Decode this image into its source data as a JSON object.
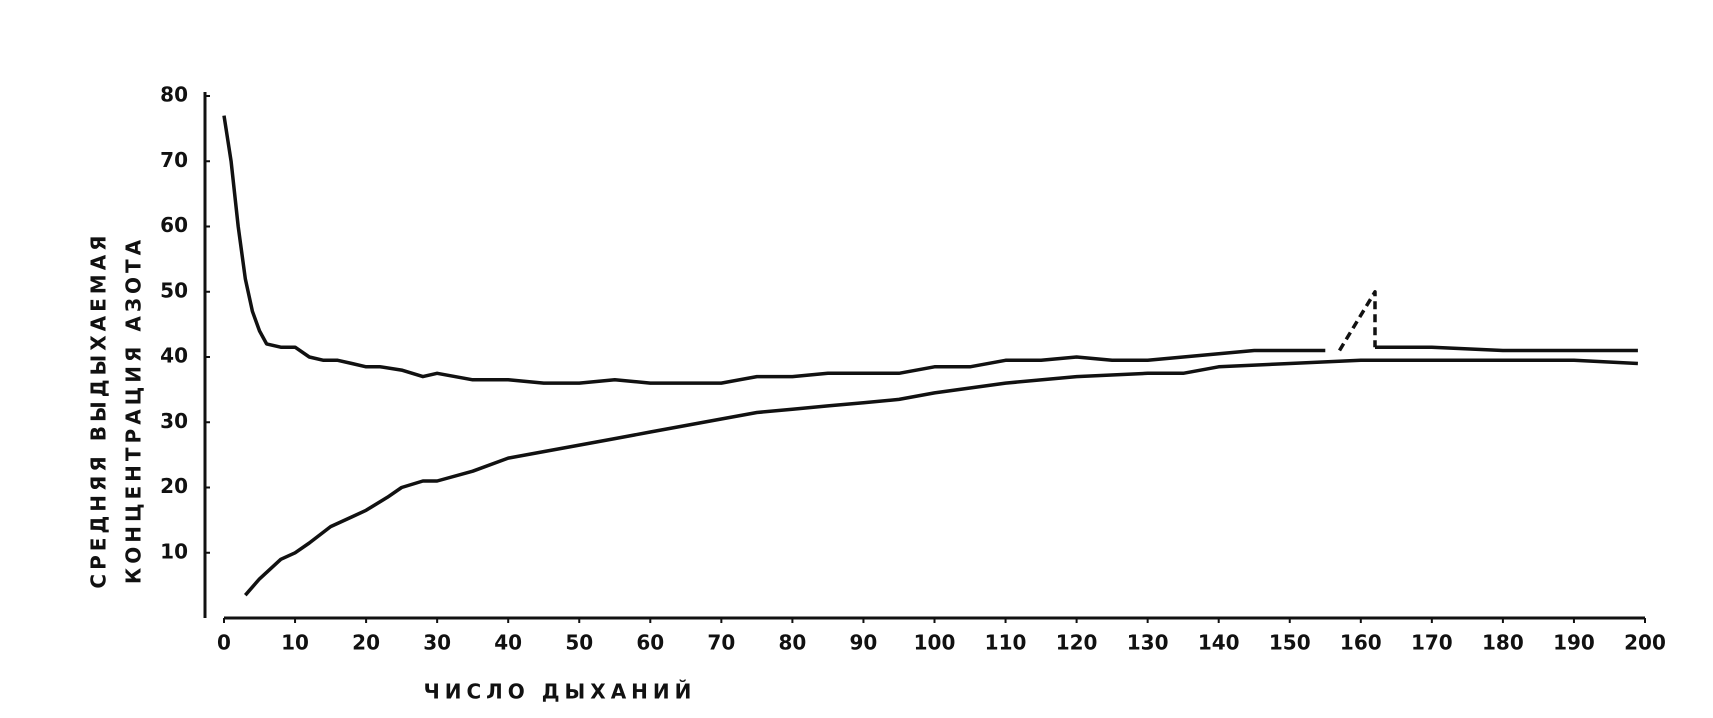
{
  "chart_data": {
    "type": "line",
    "ylabel": [
      "СРЕДНЯЯ ВЫДЫХАЕМАЯ",
      "КОНЦЕНТРАЦИЯ АЗОТА"
    ],
    "xlabel": "ЧИСЛО ДЫХАНИЙ",
    "xlim": [
      0,
      200
    ],
    "xticks": [
      0,
      10,
      20,
      30,
      40,
      50,
      60,
      70,
      80,
      90,
      100,
      110,
      120,
      130,
      140,
      150,
      160,
      170,
      180,
      190,
      200
    ],
    "ylim": [
      0,
      80
    ],
    "yticks": [
      10,
      20,
      30,
      40,
      50,
      60,
      70,
      80
    ],
    "grid": false,
    "series": [
      {
        "color": "#111111",
        "dashed": false,
        "x": [
          0,
          1,
          2,
          3,
          4,
          5,
          6,
          8,
          10,
          12,
          14,
          16,
          18,
          20,
          22,
          25,
          28,
          30,
          35,
          40,
          45,
          50,
          55,
          60,
          65,
          70,
          75,
          80,
          85,
          90,
          95,
          100,
          105,
          110,
          115,
          120,
          125,
          130,
          135,
          140,
          145,
          150,
          155,
          158,
          162,
          165,
          170,
          180,
          190,
          199
        ],
        "values": [
          77,
          70,
          60,
          52,
          47,
          44,
          42,
          41.5,
          41.5,
          40,
          39.5,
          39.5,
          39,
          38.5,
          38.5,
          38,
          37,
          37.5,
          36.5,
          36.5,
          36,
          36,
          36.5,
          36,
          36,
          36,
          37,
          37,
          37.5,
          37.5,
          37.5,
          38.5,
          38.5,
          39.5,
          39.5,
          40,
          39.5,
          39.5,
          40,
          40.5,
          41,
          41,
          41,
          null,
          41.5,
          41.5,
          41.5,
          41,
          41,
          41
        ]
      },
      {
        "color": "#111111",
        "dashed": true,
        "x": [
          157,
          162,
          162
        ],
        "values": [
          41,
          50,
          41.5
        ]
      },
      {
        "color": "#111111",
        "dashed": false,
        "x": [
          3,
          5,
          8,
          10,
          12,
          15,
          18,
          20,
          23,
          25,
          28,
          30,
          35,
          40,
          45,
          50,
          55,
          60,
          65,
          70,
          75,
          80,
          85,
          90,
          95,
          100,
          110,
          120,
          130,
          135,
          140,
          150,
          160,
          170,
          180,
          190,
          199
        ],
        "values": [
          3.5,
          6,
          9,
          10,
          11.5,
          14,
          15.5,
          16.5,
          18.5,
          20,
          21,
          21,
          22.5,
          24.5,
          25.5,
          26.5,
          27.5,
          28.5,
          29.5,
          30.5,
          31.5,
          32,
          32.5,
          33,
          33.5,
          34.5,
          36,
          37,
          37.5,
          37.5,
          38.5,
          39,
          39.5,
          39.5,
          39.5,
          39.5,
          39
        ]
      }
    ]
  }
}
